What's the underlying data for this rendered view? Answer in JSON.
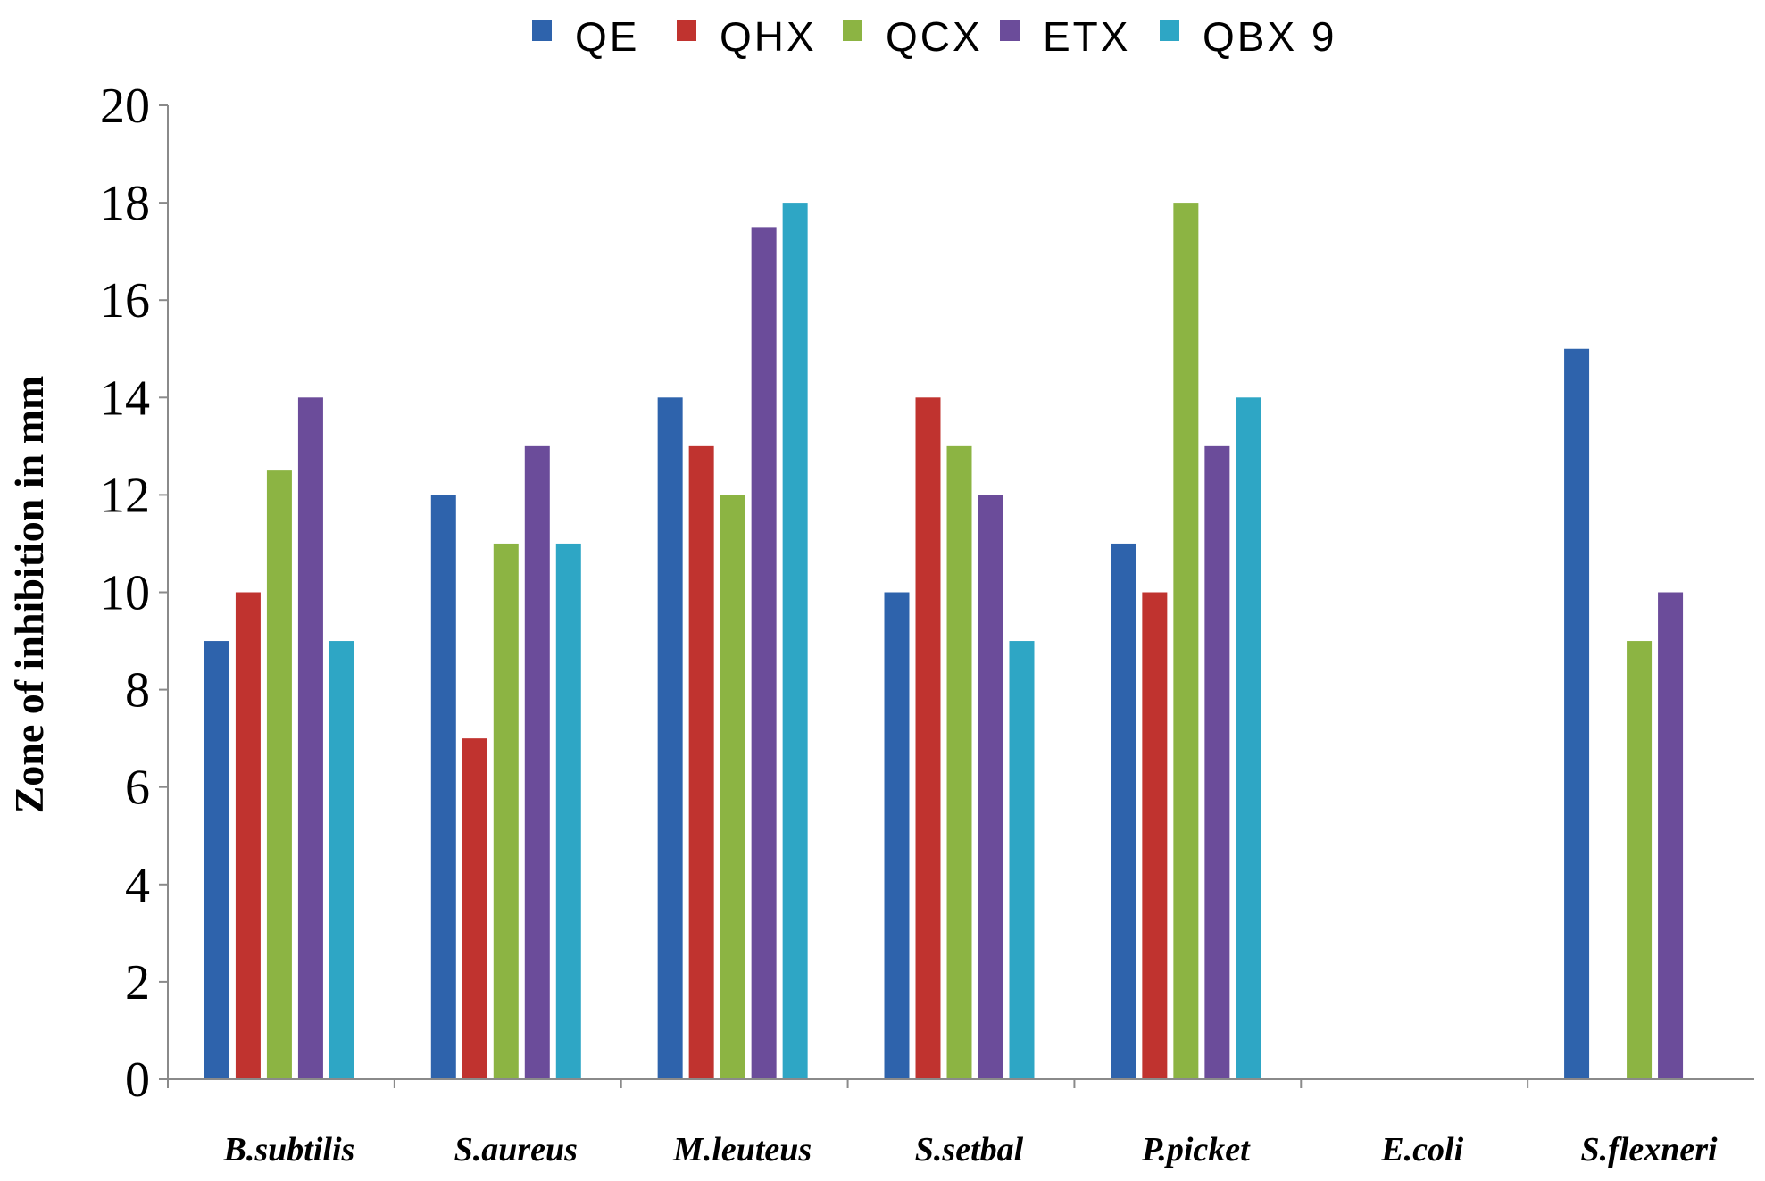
{
  "chart_data": {
    "type": "bar",
    "title": "",
    "xlabel": "",
    "ylabel": "Zone of inhibition in mm",
    "ylim": [
      0,
      20
    ],
    "yticks": [
      0,
      2,
      4,
      6,
      8,
      10,
      12,
      14,
      16,
      18,
      20
    ],
    "grid": false,
    "legend_position": "top",
    "categories": [
      "B.subtilis",
      "S.aureus",
      "M.leuteus",
      "S.setbal",
      "P.picket",
      "E.coli",
      "S.flexneri"
    ],
    "series": [
      {
        "name": "QE",
        "color": "#2E63AC",
        "values": [
          9,
          12,
          14,
          10,
          11,
          0,
          15
        ]
      },
      {
        "name": "QHX",
        "color": "#C0332F",
        "values": [
          10,
          7,
          13,
          14,
          10,
          0,
          0
        ]
      },
      {
        "name": "QCX",
        "color": "#8CB443",
        "values": [
          12.5,
          11,
          12,
          13,
          18,
          0,
          9
        ]
      },
      {
        "name": "ETX",
        "color": "#6B4C9A",
        "values": [
          14,
          13,
          17.5,
          12,
          13,
          0,
          10
        ]
      },
      {
        "name": "QBX 9",
        "color": "#2EA6C5",
        "values": [
          9,
          11,
          18,
          9,
          14,
          0,
          0
        ]
      }
    ]
  }
}
